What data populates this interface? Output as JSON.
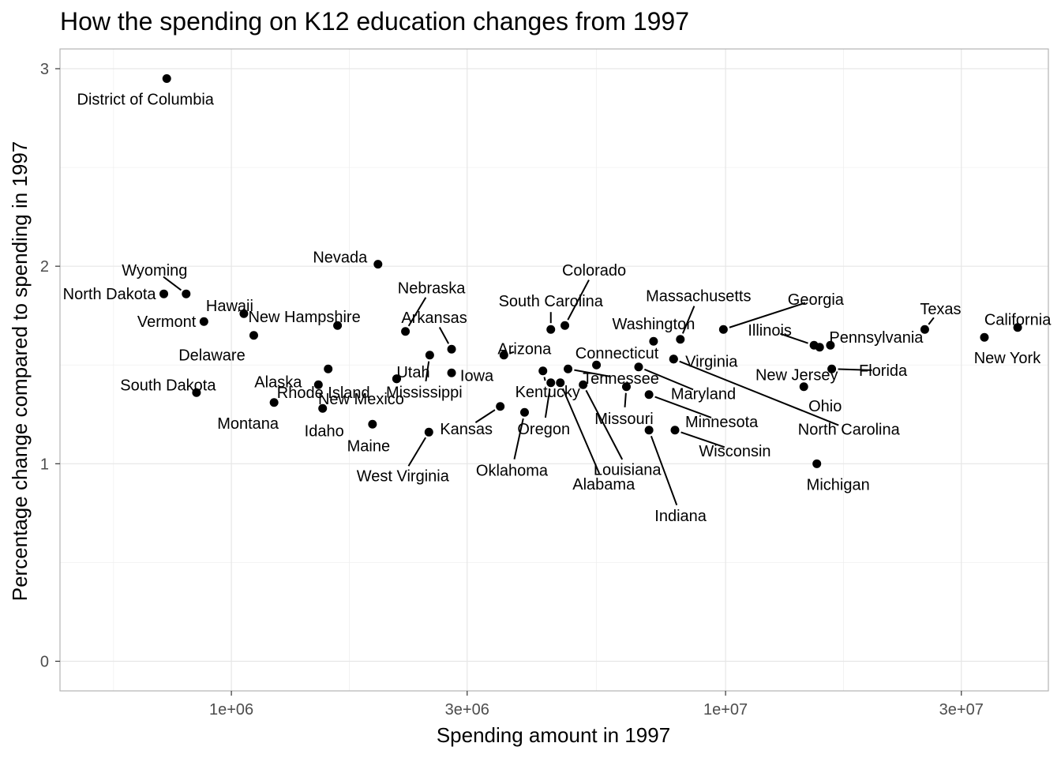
{
  "chart_data": {
    "type": "scatter",
    "title": "How the spending on K12 education changes from 1997",
    "xlabel": "Spending amount in 1997",
    "ylabel": "Percentage change compared to spending in 1997",
    "x_scale": "log10",
    "xlim": [
      450000,
      45000000
    ],
    "ylim": [
      -0.15,
      3.1
    ],
    "x_ticks": [
      {
        "value": 1000000,
        "label": "1e+06"
      },
      {
        "value": 3000000,
        "label": "3e+06"
      },
      {
        "value": 10000000,
        "label": "1e+07"
      },
      {
        "value": 30000000,
        "label": "3e+07"
      }
    ],
    "y_ticks": [
      {
        "value": 0,
        "label": "0"
      },
      {
        "value": 1,
        "label": "1"
      },
      {
        "value": 2,
        "label": "2"
      },
      {
        "value": 3,
        "label": "3"
      }
    ],
    "grid": true,
    "legend": "none",
    "points": [
      {
        "label": "District of Columbia",
        "x": 740000,
        "y": 2.95
      },
      {
        "label": "Wyoming",
        "x": 810000,
        "y": 1.86
      },
      {
        "label": "North Dakota",
        "x": 730000,
        "y": 1.86
      },
      {
        "label": "Hawaii",
        "x": 1060000,
        "y": 1.76
      },
      {
        "label": "Vermont",
        "x": 880000,
        "y": 1.72
      },
      {
        "label": "Delaware",
        "x": 1110000,
        "y": 1.65
      },
      {
        "label": "New Hampshire",
        "x": 1640000,
        "y": 1.7
      },
      {
        "label": "Rhode Island",
        "x": 1570000,
        "y": 1.48
      },
      {
        "label": "South Dakota",
        "x": 850000,
        "y": 1.36
      },
      {
        "label": "Montana",
        "x": 1220000,
        "y": 1.31
      },
      {
        "label": "Alaska",
        "x": 1500000,
        "y": 1.4
      },
      {
        "label": "Idaho",
        "x": 1530000,
        "y": 1.28
      },
      {
        "label": "New Mexico",
        "x": 2160000,
        "y": 1.43
      },
      {
        "label": "Maine",
        "x": 1930000,
        "y": 1.2
      },
      {
        "label": "Nevada",
        "x": 1980000,
        "y": 2.01
      },
      {
        "label": "Utah",
        "x": 2160000,
        "y": 1.43
      },
      {
        "label": "Nebraska",
        "x": 2250000,
        "y": 1.67
      },
      {
        "label": "Arkansas",
        "x": 2790000,
        "y": 1.58
      },
      {
        "label": "Mississippi",
        "x": 2520000,
        "y": 1.55
      },
      {
        "label": "Iowa",
        "x": 2790000,
        "y": 1.46
      },
      {
        "label": "West Virginia",
        "x": 2510000,
        "y": 1.16
      },
      {
        "label": "Kansas",
        "x": 3500000,
        "y": 1.29
      },
      {
        "label": "Oklahoma",
        "x": 3920000,
        "y": 1.26
      },
      {
        "label": "Arizona",
        "x": 3560000,
        "y": 1.55
      },
      {
        "label": "Kentucky",
        "x": 4270000,
        "y": 1.47
      },
      {
        "label": "Oregon",
        "x": 4430000,
        "y": 1.41
      },
      {
        "label": "South Carolina",
        "x": 4430000,
        "y": 1.68
      },
      {
        "label": "Colorado",
        "x": 4730000,
        "y": 1.7
      },
      {
        "label": "Alabama",
        "x": 4630000,
        "y": 1.41
      },
      {
        "label": "Tennessee",
        "x": 4800000,
        "y": 1.48
      },
      {
        "label": "Louisiana",
        "x": 5150000,
        "y": 1.4
      },
      {
        "label": "Connecticut",
        "x": 5480000,
        "y": 1.5
      },
      {
        "label": "Missouri",
        "x": 6300000,
        "y": 1.39
      },
      {
        "label": "Maryland",
        "x": 6670000,
        "y": 1.49
      },
      {
        "label": "Minnesota",
        "x": 7000000,
        "y": 1.35
      },
      {
        "label": "Indiana",
        "x": 7000000,
        "y": 1.17
      },
      {
        "label": "Wisconsin",
        "x": 7900000,
        "y": 1.17
      },
      {
        "label": "Washington",
        "x": 7150000,
        "y": 1.62
      },
      {
        "label": "Massachusetts",
        "x": 8100000,
        "y": 1.63
      },
      {
        "label": "Virginia",
        "x": 7850000,
        "y": 1.53
      },
      {
        "label": "Georgia",
        "x": 9900000,
        "y": 1.68
      },
      {
        "label": "Illinois",
        "x": 15100000,
        "y": 1.6
      },
      {
        "label": "Pennsylvania",
        "x": 16300000,
        "y": 1.6
      },
      {
        "label": "New Jersey",
        "x": 15500000,
        "y": 1.59
      },
      {
        "label": "Ohio",
        "x": 14400000,
        "y": 1.39
      },
      {
        "label": "Florida",
        "x": 16400000,
        "y": 1.48
      },
      {
        "label": "North Carolina",
        "x": 7850000,
        "y": 1.53
      },
      {
        "label": "Michigan",
        "x": 15300000,
        "y": 1.0
      },
      {
        "label": "Texas",
        "x": 25300000,
        "y": 1.68
      },
      {
        "label": "California",
        "x": 39000000,
        "y": 1.69
      },
      {
        "label": "New York",
        "x": 33400000,
        "y": 1.64
      }
    ]
  }
}
